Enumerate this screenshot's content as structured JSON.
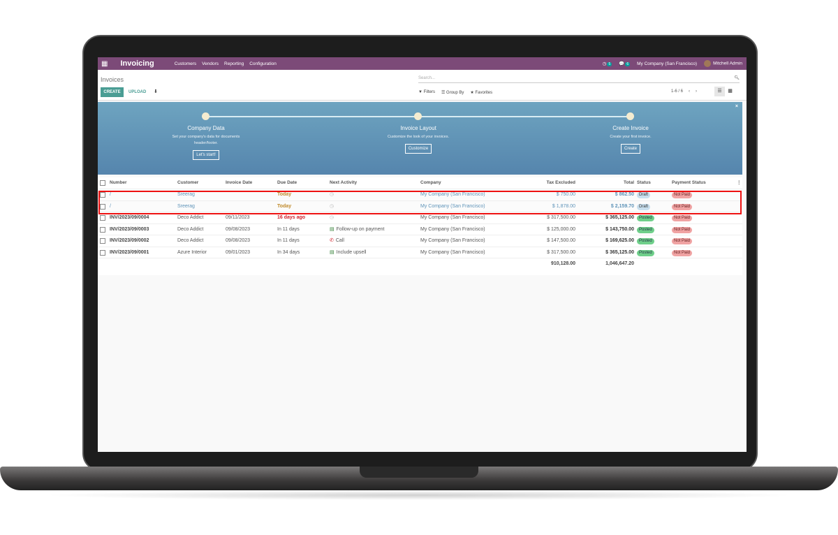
{
  "navbar": {
    "app": "Invoicing",
    "menu": [
      "Customers",
      "Vendors",
      "Reporting",
      "Configuration"
    ],
    "activity_count": "5",
    "message_count": "6",
    "company": "My Company (San Francisco)",
    "user": "Mitchell Admin"
  },
  "control": {
    "breadcrumb": "Invoices",
    "search_placeholder": "Search...",
    "create": "CREATE",
    "upload": "UPLOAD",
    "filters": "Filters",
    "group_by": "Group By",
    "favorites": "Favorites",
    "pager": "1-6 / 6"
  },
  "banner": {
    "steps": [
      {
        "title": "Company Data",
        "desc": "Set your company's data for documents header/footer.",
        "button": "Let's start!"
      },
      {
        "title": "Invoice Layout",
        "desc": "Customize the look of your invoices.",
        "button": "Customize"
      },
      {
        "title": "Create Invoice",
        "desc": "Create your first invoice.",
        "button": "Create"
      }
    ],
    "close": "×"
  },
  "table": {
    "headers": [
      "Number",
      "Customer",
      "Invoice Date",
      "Due Date",
      "Next Activity",
      "Company",
      "Tax Excluded",
      "Total",
      "Status",
      "Payment Status"
    ],
    "rows": [
      {
        "number": "/",
        "customer": "Sreerag",
        "date": "",
        "due": "Today",
        "activity": "",
        "company": "My Company (San Francisco)",
        "tax": "$ 750.00",
        "total": "$ 862.50",
        "status": "Draft",
        "payment": "Not Paid"
      },
      {
        "number": "/",
        "customer": "Sreerag",
        "date": "",
        "due": "Today",
        "activity": "",
        "company": "My Company (San Francisco)",
        "tax": "$ 1,878.00",
        "total": "$ 2,159.70",
        "status": "Draft",
        "payment": "Not Paid"
      },
      {
        "number": "INV/2023/09/0004",
        "customer": "Deco Addict",
        "date": "09/11/2023",
        "due": "16 days ago",
        "activity": "",
        "company": "My Company (San Francisco)",
        "tax": "$ 317,500.00",
        "total": "$ 365,125.00",
        "status": "Posted",
        "payment": "Not Paid"
      },
      {
        "number": "INV/2023/09/0003",
        "customer": "Deco Addict",
        "date": "09/08/2023",
        "due": "In 11 days",
        "activity": "Follow-up on payment",
        "company": "My Company (San Francisco)",
        "tax": "$ 125,000.00",
        "total": "$ 143,750.00",
        "status": "Posted",
        "payment": "Not Paid"
      },
      {
        "number": "INV/2023/09/0002",
        "customer": "Deco Addict",
        "date": "09/08/2023",
        "due": "In 11 days",
        "activity": "Call",
        "company": "My Company (San Francisco)",
        "tax": "$ 147,500.00",
        "total": "$ 169,625.00",
        "status": "Posted",
        "payment": "Not Paid"
      },
      {
        "number": "INV/2023/09/0001",
        "customer": "Azure Interior",
        "date": "09/01/2023",
        "due": "In 34 days",
        "activity": "Include upsell",
        "company": "My Company (San Francisco)",
        "tax": "$ 317,500.00",
        "total": "$ 365,125.00",
        "status": "Posted",
        "payment": "Not Paid"
      }
    ],
    "totals": {
      "tax": "910,128.00",
      "total": "1,046,647.20"
    }
  },
  "colors": {
    "navbar": "#7c4a78",
    "primary": "#4a9d94",
    "highlight": "#e11111"
  }
}
